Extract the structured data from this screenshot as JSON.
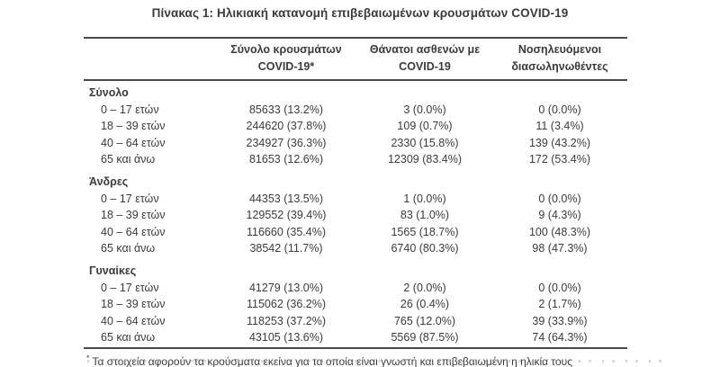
{
  "page": {
    "title": "Πίνακας 1: Ηλικιακή κατανομή επιβεβαιωμένων κρουσμάτων COVID-19"
  },
  "colors": {
    "text": "#3b3b3b",
    "line": "#4a4a4a",
    "background": "#ffffff"
  },
  "table": {
    "columns": [
      {
        "line1": "Σύνολο κρουσμάτων",
        "line2": "COVID-19*"
      },
      {
        "line1": "Θάνατοι ασθενών με",
        "line2": "COVID-19"
      },
      {
        "line1": "Νοσηλευόμενοι",
        "line2": "διασωληνωθέντες"
      }
    ],
    "sections": [
      {
        "label": "Σύνολο",
        "rows": [
          {
            "age": "0 – 17 ετών",
            "cases": "85633 (13.2%)",
            "deaths": "3 (0.0%)",
            "intubated": "0 (0.0%)"
          },
          {
            "age": "18 – 39 ετών",
            "cases": "244620 (37.8%)",
            "deaths": "109 (0.7%)",
            "intubated": "11 (3.4%)"
          },
          {
            "age": "40 – 64 ετών",
            "cases": "234927 (36.3%)",
            "deaths": "2330 (15.8%)",
            "intubated": "139 (43.2%)"
          },
          {
            "age": "65 και άνω",
            "cases": "81653 (12.6%)",
            "deaths": "12309 (83.4%)",
            "intubated": "172 (53.4%)"
          }
        ]
      },
      {
        "label": "Άνδρες",
        "rows": [
          {
            "age": "0 – 17 ετών",
            "cases": "44353 (13.5%)",
            "deaths": "1 (0.0%)",
            "intubated": "0 (0.0%)"
          },
          {
            "age": "18 – 39 ετών",
            "cases": "129552 (39.4%)",
            "deaths": "83 (1.0%)",
            "intubated": "9 (4.3%)"
          },
          {
            "age": "40 – 64 ετών",
            "cases": "116660 (35.4%)",
            "deaths": "1565 (18.7%)",
            "intubated": "100 (48.3%)"
          },
          {
            "age": "65 και άνω",
            "cases": "38542 (11.7%)",
            "deaths": "6740 (80.3%)",
            "intubated": "98 (47.3%)"
          }
        ]
      },
      {
        "label": "Γυναίκες",
        "rows": [
          {
            "age": "0 – 17 ετών",
            "cases": "41279 (13.0%)",
            "deaths": "2 (0.0%)",
            "intubated": "0 (0.0%)"
          },
          {
            "age": "18 – 39 ετών",
            "cases": "115062 (36.2%)",
            "deaths": "26 (0.4%)",
            "intubated": "2 (1.7%)"
          },
          {
            "age": "40 – 64 ετών",
            "cases": "118253 (37.2%)",
            "deaths": "765 (12.0%)",
            "intubated": "39 (33.9%)"
          },
          {
            "age": "65 και άνω",
            "cases": "43105 (13.6%)",
            "deaths": "5569 (87.5%)",
            "intubated": "74 (64.3%)"
          }
        ]
      }
    ],
    "footnote": {
      "marker": "*",
      "text": "Τα στοιχεία αφορούν τα κρούσματα εκείνα για τα οποία είναι γνωστή και επιβεβαιωμένη η ηλικία τους"
    }
  }
}
